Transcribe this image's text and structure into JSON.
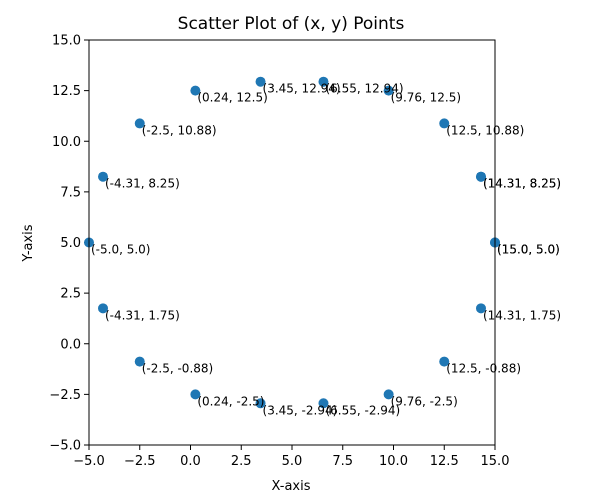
{
  "chart_data": {
    "type": "scatter",
    "title": "Scatter Plot of (x, y) Points",
    "xlabel": "X-axis",
    "ylabel": "Y-axis",
    "xlim": [
      -5.0,
      15.0
    ],
    "ylim": [
      -5.0,
      15.0
    ],
    "grid": false,
    "point_color": "#1f77b4",
    "xticks": [
      -5.0,
      -2.5,
      0.0,
      2.5,
      5.0,
      7.5,
      10.0,
      12.5,
      15.0
    ],
    "xtick_labels": [
      "−5.0",
      "−2.5",
      "0.0",
      "2.5",
      "5.0",
      "7.5",
      "10.0",
      "12.5",
      "15.0"
    ],
    "yticks": [
      -5.0,
      -2.5,
      0.0,
      2.5,
      5.0,
      7.5,
      10.0,
      12.5,
      15.0
    ],
    "ytick_labels": [
      "−5.0",
      "−2.5",
      "0.0",
      "2.5",
      "5.0",
      "7.5",
      "10.0",
      "12.5",
      "15.0"
    ],
    "points": [
      {
        "x": 15.0,
        "y": 5.0,
        "label": "(15.0, 5.0)"
      },
      {
        "x": 14.31,
        "y": 8.25,
        "label": "(14.31, 8.25)"
      },
      {
        "x": 12.5,
        "y": 10.88,
        "label": "(12.5, 10.88)"
      },
      {
        "x": 9.76,
        "y": 12.5,
        "label": "(9.76, 12.5)"
      },
      {
        "x": 6.55,
        "y": 12.94,
        "label": "(6.55, 12.94)"
      },
      {
        "x": 3.45,
        "y": 12.94,
        "label": "(3.45, 12.94)"
      },
      {
        "x": 0.24,
        "y": 12.5,
        "label": "(0.24, 12.5)"
      },
      {
        "x": -2.5,
        "y": 10.88,
        "label": "(-2.5, 10.88)"
      },
      {
        "x": -4.31,
        "y": 8.25,
        "label": "(-4.31, 8.25)"
      },
      {
        "x": -5.0,
        "y": 5.0,
        "label": "(-5.0, 5.0)"
      },
      {
        "x": -4.31,
        "y": 1.75,
        "label": "(-4.31, 1.75)"
      },
      {
        "x": -2.5,
        "y": -0.88,
        "label": "(-2.5, -0.88)"
      },
      {
        "x": 0.24,
        "y": -2.5,
        "label": "(0.24, -2.5)"
      },
      {
        "x": 3.45,
        "y": -2.94,
        "label": "(3.45, -2.94)"
      },
      {
        "x": 6.55,
        "y": -2.94,
        "label": "(6.55, -2.94)"
      },
      {
        "x": 9.76,
        "y": -2.5,
        "label": "(9.76, -2.5)"
      },
      {
        "x": 12.5,
        "y": -0.88,
        "label": "(12.5, -0.88)"
      },
      {
        "x": 14.31,
        "y": 1.75,
        "label": "(14.31, 1.75)"
      },
      {
        "x": 15.0,
        "y": 5.0,
        "label": "(15.0, 5.0)"
      },
      {
        "x": 14.31,
        "y": 8.25,
        "label": "(14.31, 8.25)"
      }
    ]
  }
}
